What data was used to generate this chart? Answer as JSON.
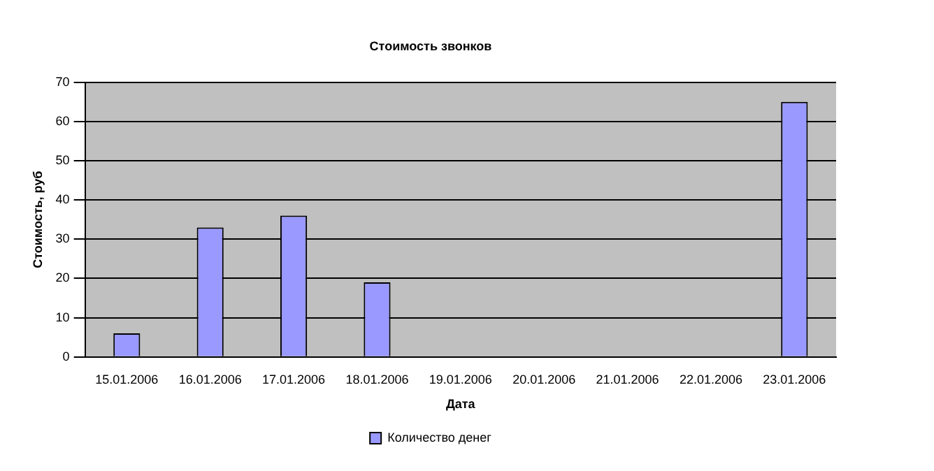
{
  "chart_data": {
    "type": "bar",
    "title": "Стоимость звонков",
    "xlabel": "Дата",
    "ylabel": "Стоимость, руб",
    "categories": [
      "15.01.2006",
      "16.01.2006",
      "17.01.2006",
      "18.01.2006",
      "19.01.2006",
      "20.01.2006",
      "21.01.2006",
      "22.01.2006",
      "23.01.2006"
    ],
    "series": [
      {
        "name": "Количество денег",
        "color": "#9999ff",
        "values": [
          6,
          33,
          36,
          19,
          null,
          null,
          null,
          null,
          65
        ]
      }
    ],
    "ylim": [
      0,
      70
    ],
    "yticks": [
      0,
      10,
      20,
      30,
      40,
      50,
      60,
      70
    ],
    "grid": "y",
    "legend": "bottom"
  }
}
